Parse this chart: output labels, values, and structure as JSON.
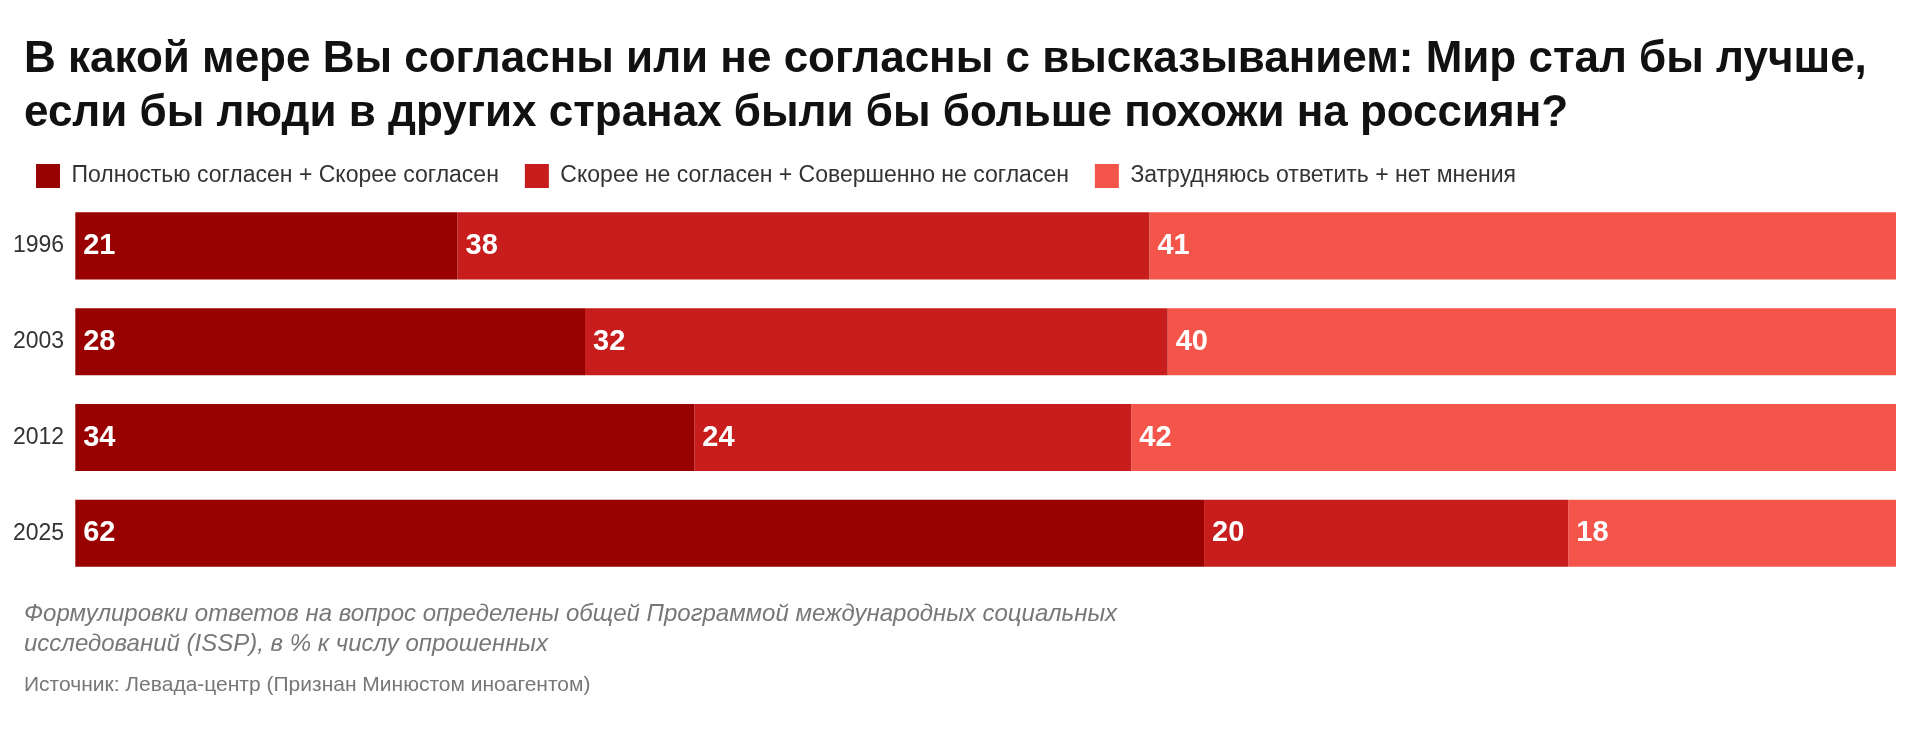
{
  "chart_data": {
    "type": "bar",
    "orientation": "horizontal",
    "stacked": true,
    "data_labels": true,
    "grid": false,
    "legend": "top left",
    "title": "В какой мере Вы согласны или не согласны с высказыванием: Мир стал бы лучше, если бы люди в других странах были бы больше похожи на россиян?",
    "categories": [
      "1996",
      "2003",
      "2012",
      "2025"
    ],
    "series": [
      {
        "name": "Полностью согласен + Скорее согласен",
        "color": "#990000",
        "values": [
          21,
          28,
          34,
          62
        ]
      },
      {
        "name": "Скорее не согласен + Совершенно не согласен",
        "color": "#c71e1d",
        "values": [
          38,
          32,
          24,
          20
        ]
      },
      {
        "name": "Затрудняюсь ответить + нет мнения",
        "color": "#f4554a",
        "values": [
          41,
          40,
          42,
          18
        ]
      }
    ],
    "annotations": [
      "Формулировки ответов на вопрос определены общей Программой международных социальных исследований (ISSP), в % к числу опрошенных",
      "Источник: Левада-центр (Признан Минюстом иноагентом)"
    ]
  }
}
